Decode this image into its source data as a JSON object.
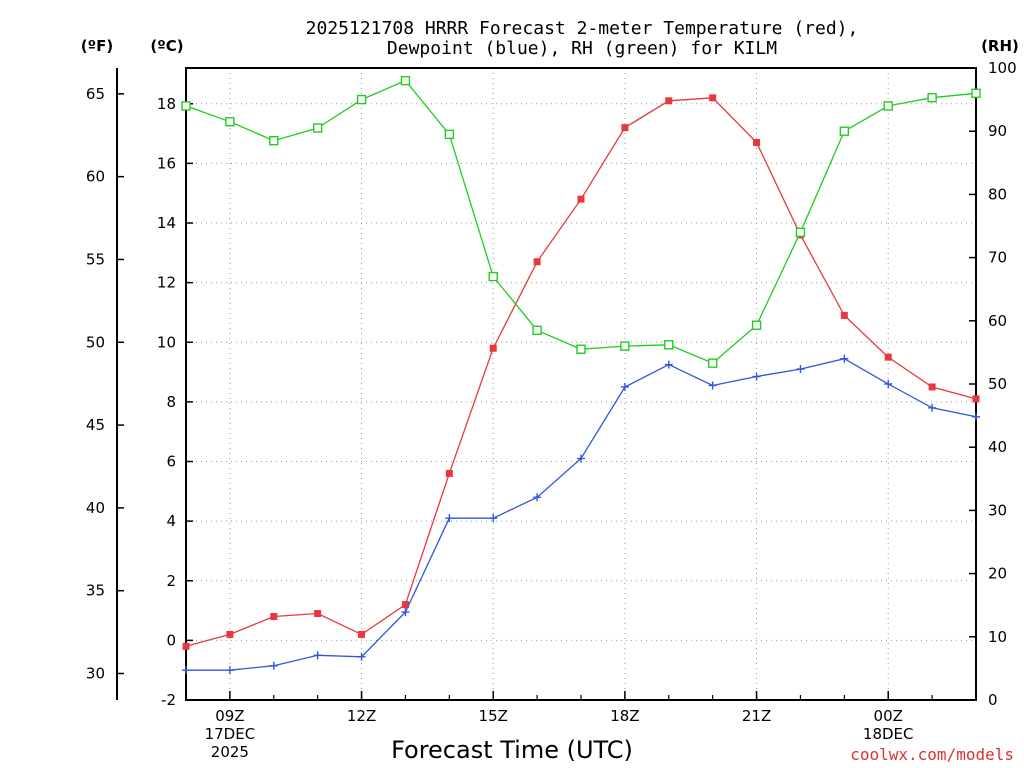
{
  "chart_data": {
    "type": "line",
    "title_line1": "2025121708 HRRR Forecast 2-meter Temperature (red),",
    "title_line2": "Dewpoint (blue), RH (green) for KILM",
    "xlabel": "Forecast Time (UTC)",
    "unit_f": "(ºF)",
    "unit_c": "(ºC)",
    "unit_rh": "(RH)",
    "credit": "coolwx.com/models",
    "x_hours": [
      8,
      9,
      10,
      11,
      12,
      13,
      14,
      15,
      16,
      17,
      18,
      19,
      20,
      21,
      22,
      23,
      24,
      25,
      26
    ],
    "x_range": [
      8,
      26
    ],
    "x_ticks": [
      {
        "hour": 9,
        "lines": [
          "09Z",
          "17DEC",
          "2025"
        ]
      },
      {
        "hour": 12,
        "lines": [
          "12Z"
        ]
      },
      {
        "hour": 15,
        "lines": [
          "15Z"
        ]
      },
      {
        "hour": 18,
        "lines": [
          "18Z"
        ]
      },
      {
        "hour": 21,
        "lines": [
          "21Z"
        ]
      },
      {
        "hour": 24,
        "lines": [
          "00Z",
          "18DEC"
        ]
      }
    ],
    "c_axis": {
      "range": [
        -2,
        19.2
      ],
      "ticks": [
        "-2",
        "0",
        "2",
        "4",
        "6",
        "8",
        "10",
        "12",
        "14",
        "16",
        "18"
      ]
    },
    "f_axis": {
      "range": [
        28.4,
        66.56
      ],
      "ticks": [
        "30",
        "35",
        "40",
        "45",
        "50",
        "55",
        "60",
        "65"
      ]
    },
    "rh_axis": {
      "range": [
        0,
        100
      ],
      "ticks": [
        "0",
        "10",
        "20",
        "30",
        "40",
        "50",
        "60",
        "70",
        "80",
        "90",
        "100"
      ]
    },
    "series": [
      {
        "name": "Temperature",
        "unit": "C",
        "color": "#e8383d",
        "values": [
          -0.2,
          0.2,
          0.8,
          0.9,
          0.2,
          1.2,
          5.6,
          9.8,
          12.7,
          14.8,
          17.2,
          18.1,
          18.2,
          16.7,
          13.6,
          10.9,
          9.5,
          8.5,
          8.1
        ]
      },
      {
        "name": "Dewpoint",
        "unit": "C",
        "color": "#3355dd",
        "values": [
          -1.0,
          -1.0,
          -0.85,
          -0.5,
          -0.55,
          0.95,
          4.1,
          4.1,
          4.8,
          6.1,
          8.5,
          9.25,
          8.55,
          8.85,
          9.1,
          9.45,
          8.6,
          7.8,
          7.5
        ]
      },
      {
        "name": "RH",
        "unit": "%",
        "color": "#22cc22",
        "values": [
          94,
          91.5,
          88.5,
          90.5,
          95,
          98,
          89.5,
          67,
          58.5,
          55.5,
          56,
          56.2,
          53.3,
          59.3,
          74,
          90,
          94,
          95.3,
          96
        ]
      }
    ]
  }
}
